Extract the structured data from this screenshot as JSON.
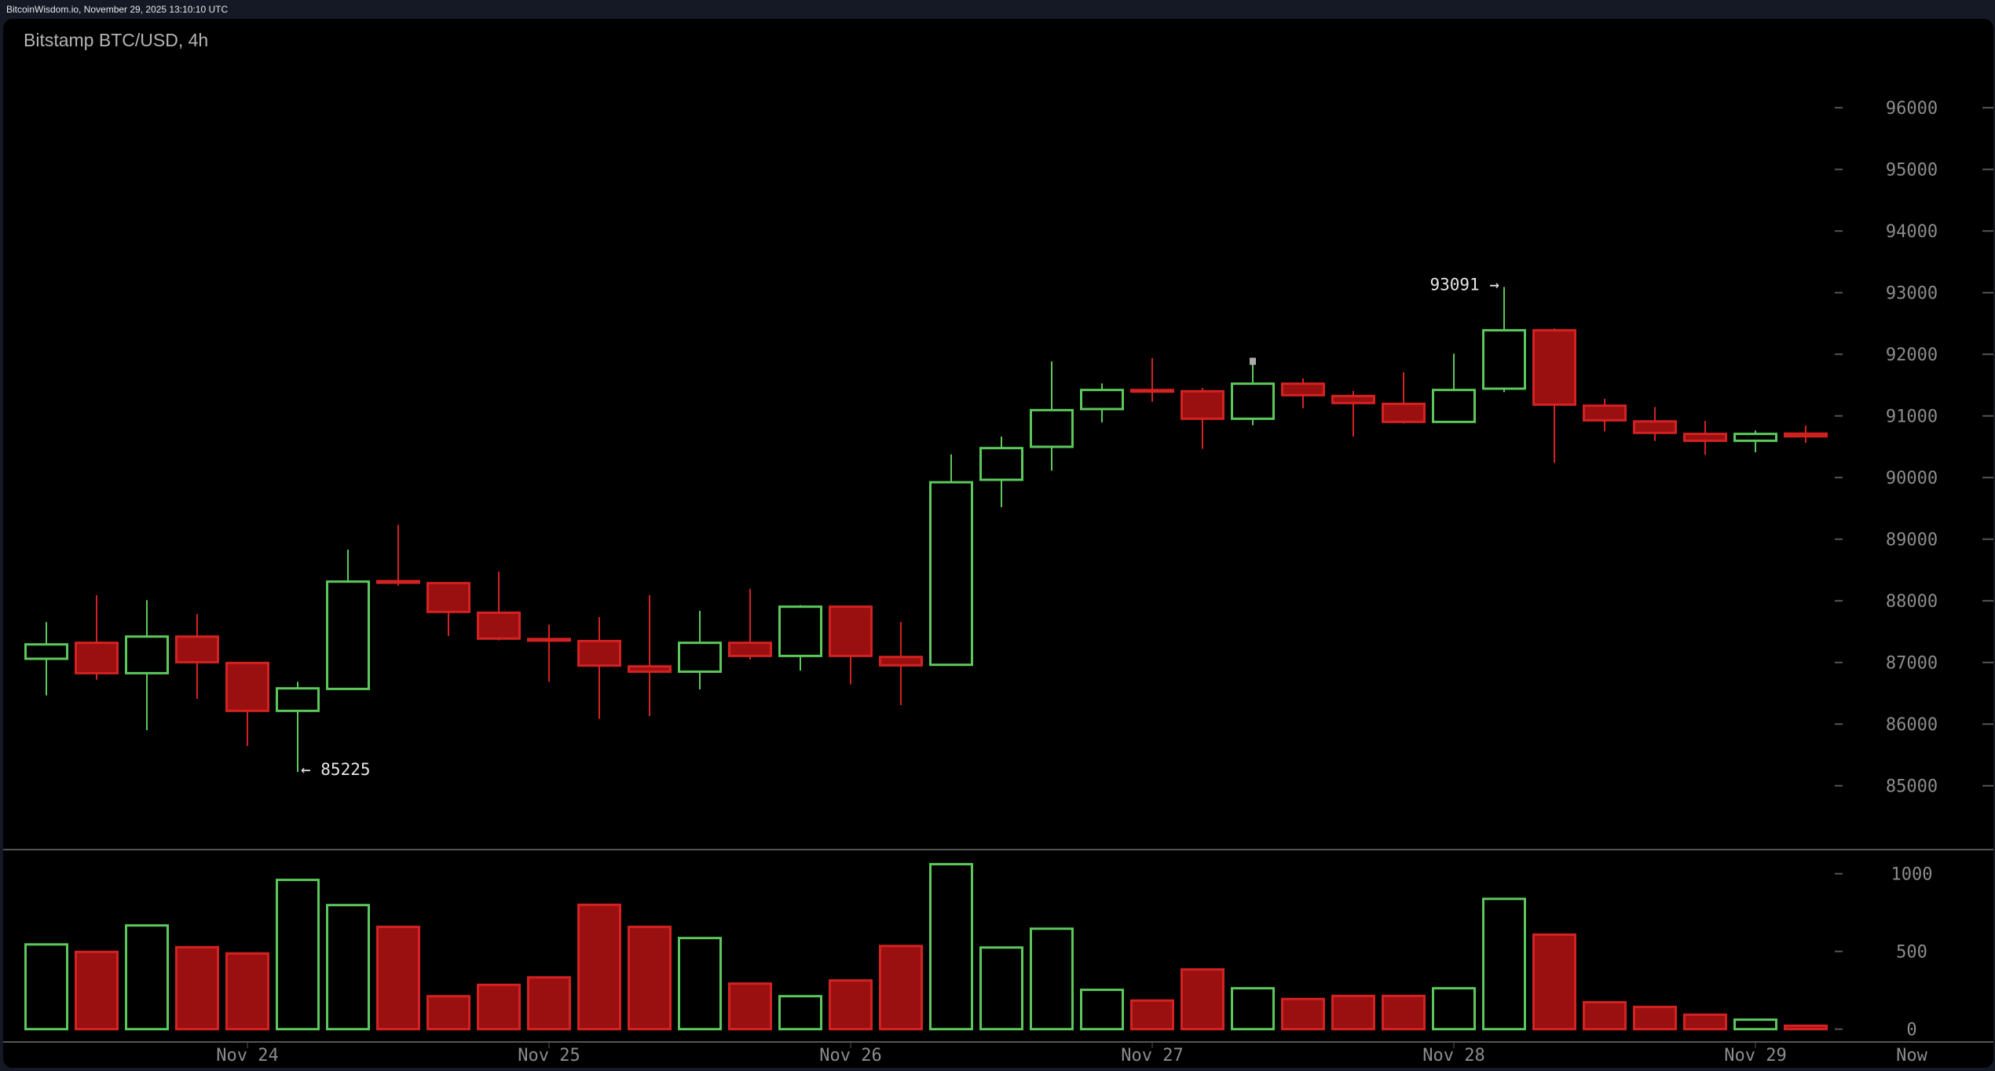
{
  "header": {
    "source_line": "BitcoinWisdom.io, November 29, 2025 13:10:10 UTC"
  },
  "chart_title": "Bitstamp BTC/USD, 4h",
  "colors": {
    "up": "#5cc85c",
    "down_fill": "#9a1010",
    "down_stroke": "#d42222",
    "background": "#000000",
    "axis_text": "#8c8c8c"
  },
  "chart_data": [
    {
      "type": "candlestick",
      "title": "Bitstamp BTC/USD, 4h",
      "ylim": [
        84500,
        96800
      ],
      "grid": false,
      "y_ticks": [
        85000,
        86000,
        87000,
        88000,
        89000,
        90000,
        91000,
        92000,
        93000,
        94000,
        95000,
        96000
      ],
      "x_ticks": [
        {
          "label": "Nov 24",
          "candle": 4
        },
        {
          "label": "Nov 25",
          "candle": 10
        },
        {
          "label": "Nov 26",
          "candle": 16
        },
        {
          "label": "Nov 27",
          "candle": 22
        },
        {
          "label": "Nov 28",
          "candle": 28
        },
        {
          "label": "Nov 29",
          "candle": 34
        }
      ],
      "now_label": "Now",
      "annotations": [
        {
          "text": "93091 →",
          "candle": 29,
          "value": 93091
        },
        {
          "text": "← 85225",
          "candle": 5,
          "value": 85225
        }
      ],
      "candles": [
        {
          "o": 87060,
          "h": 87654,
          "l": 86465,
          "c": 87293
        },
        {
          "o": 87319,
          "h": 88091,
          "l": 86720,
          "c": 86826
        },
        {
          "o": 86826,
          "h": 88011,
          "l": 85900,
          "c": 87420
        },
        {
          "o": 87420,
          "h": 87786,
          "l": 86410,
          "c": 87004
        },
        {
          "o": 86992,
          "h": 86992,
          "l": 85646,
          "c": 86215
        },
        {
          "o": 86215,
          "h": 86686,
          "l": 85225,
          "c": 86580
        },
        {
          "o": 86571,
          "h": 88830,
          "l": 86571,
          "c": 88312
        },
        {
          "o": 88320,
          "h": 89234,
          "l": 88244,
          "c": 88300
        },
        {
          "o": 88287,
          "h": 88287,
          "l": 87429,
          "c": 87820
        },
        {
          "o": 87807,
          "h": 88474,
          "l": 87357,
          "c": 87387
        },
        {
          "o": 87380,
          "h": 87612,
          "l": 86686,
          "c": 87360
        },
        {
          "o": 87348,
          "h": 87735,
          "l": 86083,
          "c": 86949
        },
        {
          "o": 86936,
          "h": 88091,
          "l": 86130,
          "c": 86851
        },
        {
          "o": 86851,
          "h": 87837,
          "l": 86563,
          "c": 87319
        },
        {
          "o": 87319,
          "h": 88193,
          "l": 87047,
          "c": 87106
        },
        {
          "o": 87106,
          "h": 87930,
          "l": 86868,
          "c": 87905
        },
        {
          "o": 87905,
          "h": 87905,
          "l": 86644,
          "c": 87106
        },
        {
          "o": 87089,
          "h": 87658,
          "l": 86308,
          "c": 86953
        },
        {
          "o": 86962,
          "h": 90377,
          "l": 86958,
          "c": 89924
        },
        {
          "o": 89964,
          "h": 90665,
          "l": 89519,
          "c": 90478
        },
        {
          "o": 90499,
          "h": 91884,
          "l": 90113,
          "c": 91094
        },
        {
          "o": 91111,
          "h": 91527,
          "l": 90894,
          "c": 91421
        },
        {
          "o": 91420,
          "h": 91939,
          "l": 91230,
          "c": 91410
        },
        {
          "o": 91400,
          "h": 91455,
          "l": 90466,
          "c": 90954
        },
        {
          "o": 90954,
          "h": 91880,
          "l": 90848,
          "c": 91523
        },
        {
          "o": 91523,
          "h": 91608,
          "l": 91124,
          "c": 91336
        },
        {
          "o": 91323,
          "h": 91404,
          "l": 90665,
          "c": 91209
        },
        {
          "o": 91196,
          "h": 91710,
          "l": 90877,
          "c": 90903
        },
        {
          "o": 90903,
          "h": 92011,
          "l": 90903,
          "c": 91421
        },
        {
          "o": 91442,
          "h": 93091,
          "l": 91387,
          "c": 92389
        },
        {
          "o": 92389,
          "h": 92419,
          "l": 90240,
          "c": 91183
        },
        {
          "o": 91166,
          "h": 91276,
          "l": 90750,
          "c": 90928
        },
        {
          "o": 90911,
          "h": 91145,
          "l": 90593,
          "c": 90725
        },
        {
          "o": 90708,
          "h": 90920,
          "l": 90368,
          "c": 90597
        },
        {
          "o": 90597,
          "h": 90763,
          "l": 90410,
          "c": 90708
        },
        {
          "o": 90712,
          "h": 90843,
          "l": 90563,
          "c": 90670
        }
      ]
    },
    {
      "type": "bar",
      "ylim": [
        0,
        1100
      ],
      "y_ticks": [
        0,
        500,
        1000
      ],
      "values": [
        545,
        497,
        667,
        527,
        487,
        960,
        798,
        658,
        212,
        285,
        333,
        800,
        658,
        586,
        293,
        212,
        313,
        535,
        1061,
        525,
        646,
        253,
        184,
        384,
        263,
        194,
        214,
        214,
        263,
        838,
        608,
        173,
        143,
        93,
        61,
        22
      ]
    }
  ]
}
